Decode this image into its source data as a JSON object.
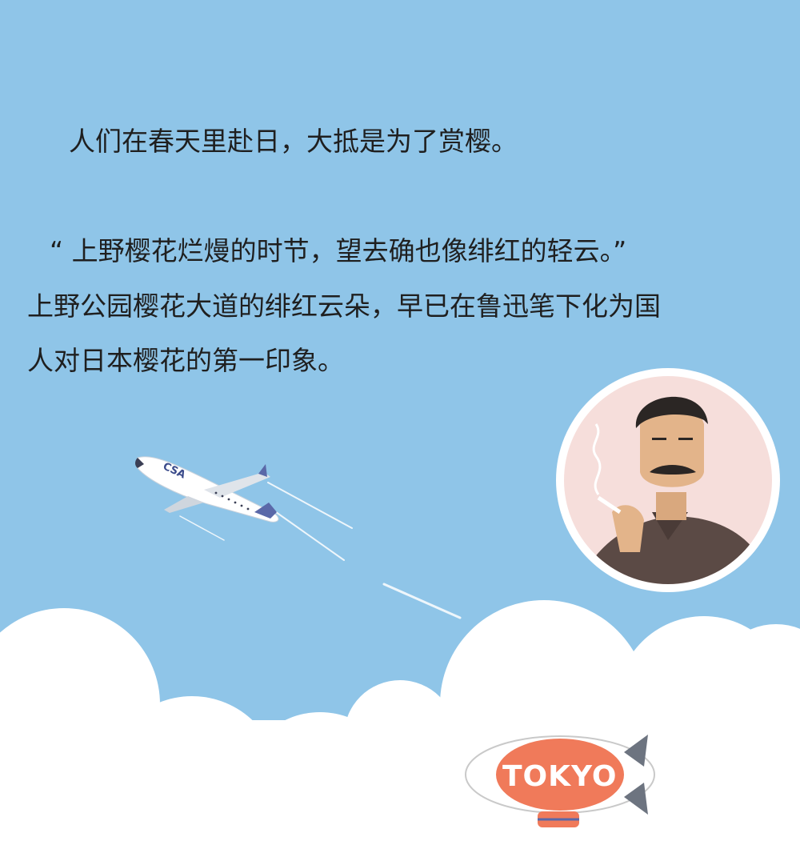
{
  "paragraph1": "人们在春天里赴日，大抵是为了赏樱。",
  "paragraph2": {
    "line1": "“ 上野樱花烂熳的时节，望去确也像绯红的轻云。”",
    "line2": "上野公园樱花大道的绯红云朵，早已在鲁迅笔下化为国",
    "line3": "人对日本樱花的第一印象。"
  },
  "illustration": {
    "airplane_logo": "CSA",
    "blimp_label": "TOKYO",
    "portrait": "portrait-of-man-smoking"
  },
  "colors": {
    "sky": "#8fc5e8",
    "cloud": "#ffffff",
    "portrait_bg": "#f6dedb",
    "blimp": "#f07a5a"
  }
}
